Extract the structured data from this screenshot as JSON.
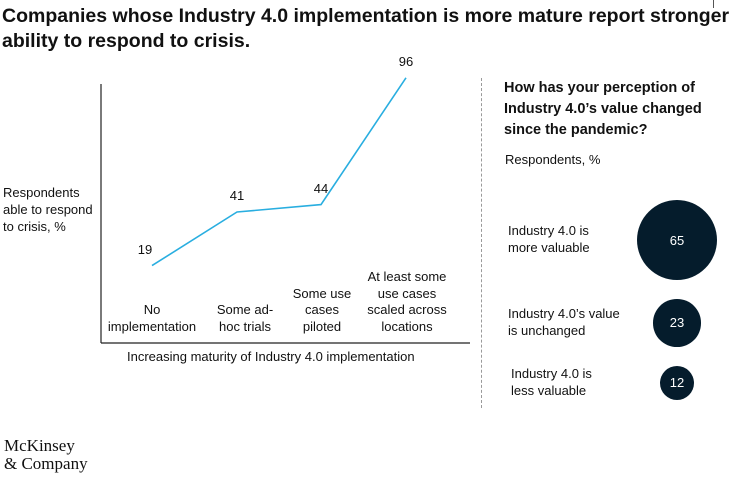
{
  "title_lines": [
    "Companies whose Industry 4.0 implementation is more mature report stronger",
    "ability to respond to crisis."
  ],
  "colors": {
    "line": "#29aee0",
    "bubble": "#051c2c",
    "axis": "#222222"
  },
  "chart_data": [
    {
      "type": "line",
      "ylabel_lines": [
        "Respondents",
        "able to respond",
        "to crisis, %"
      ],
      "xlabel": "Increasing maturity of Industry 4.0 implementation",
      "categories": [
        [
          "No",
          "implementation"
        ],
        [
          "Some ad-",
          "hoc trials"
        ],
        [
          "Some use",
          "cases",
          "piloted"
        ],
        [
          "At least some",
          "use cases",
          "scaled across",
          "locations"
        ]
      ],
      "values": [
        19,
        41,
        44,
        96
      ],
      "value_labels": [
        "19",
        "41",
        "44",
        "96"
      ],
      "ylim": [
        0,
        100
      ]
    },
    {
      "type": "bubble",
      "title_lines": [
        "How has your perception of",
        "Industry 4.0’s value changed",
        "since the pandemic?"
      ],
      "unit": "Respondents, %",
      "items": [
        {
          "label_lines": [
            "Industry 4.0 is",
            "more valuable"
          ],
          "value": 65,
          "value_label": "65"
        },
        {
          "label_lines": [
            "Industry 4.0’s value",
            "is unchanged"
          ],
          "value": 23,
          "value_label": "23"
        },
        {
          "label_lines": [
            "Industry 4.0 is",
            "less valuable"
          ],
          "value": 12,
          "value_label": "12"
        }
      ]
    }
  ],
  "logo_lines": [
    "McKinsey",
    "& Company"
  ]
}
